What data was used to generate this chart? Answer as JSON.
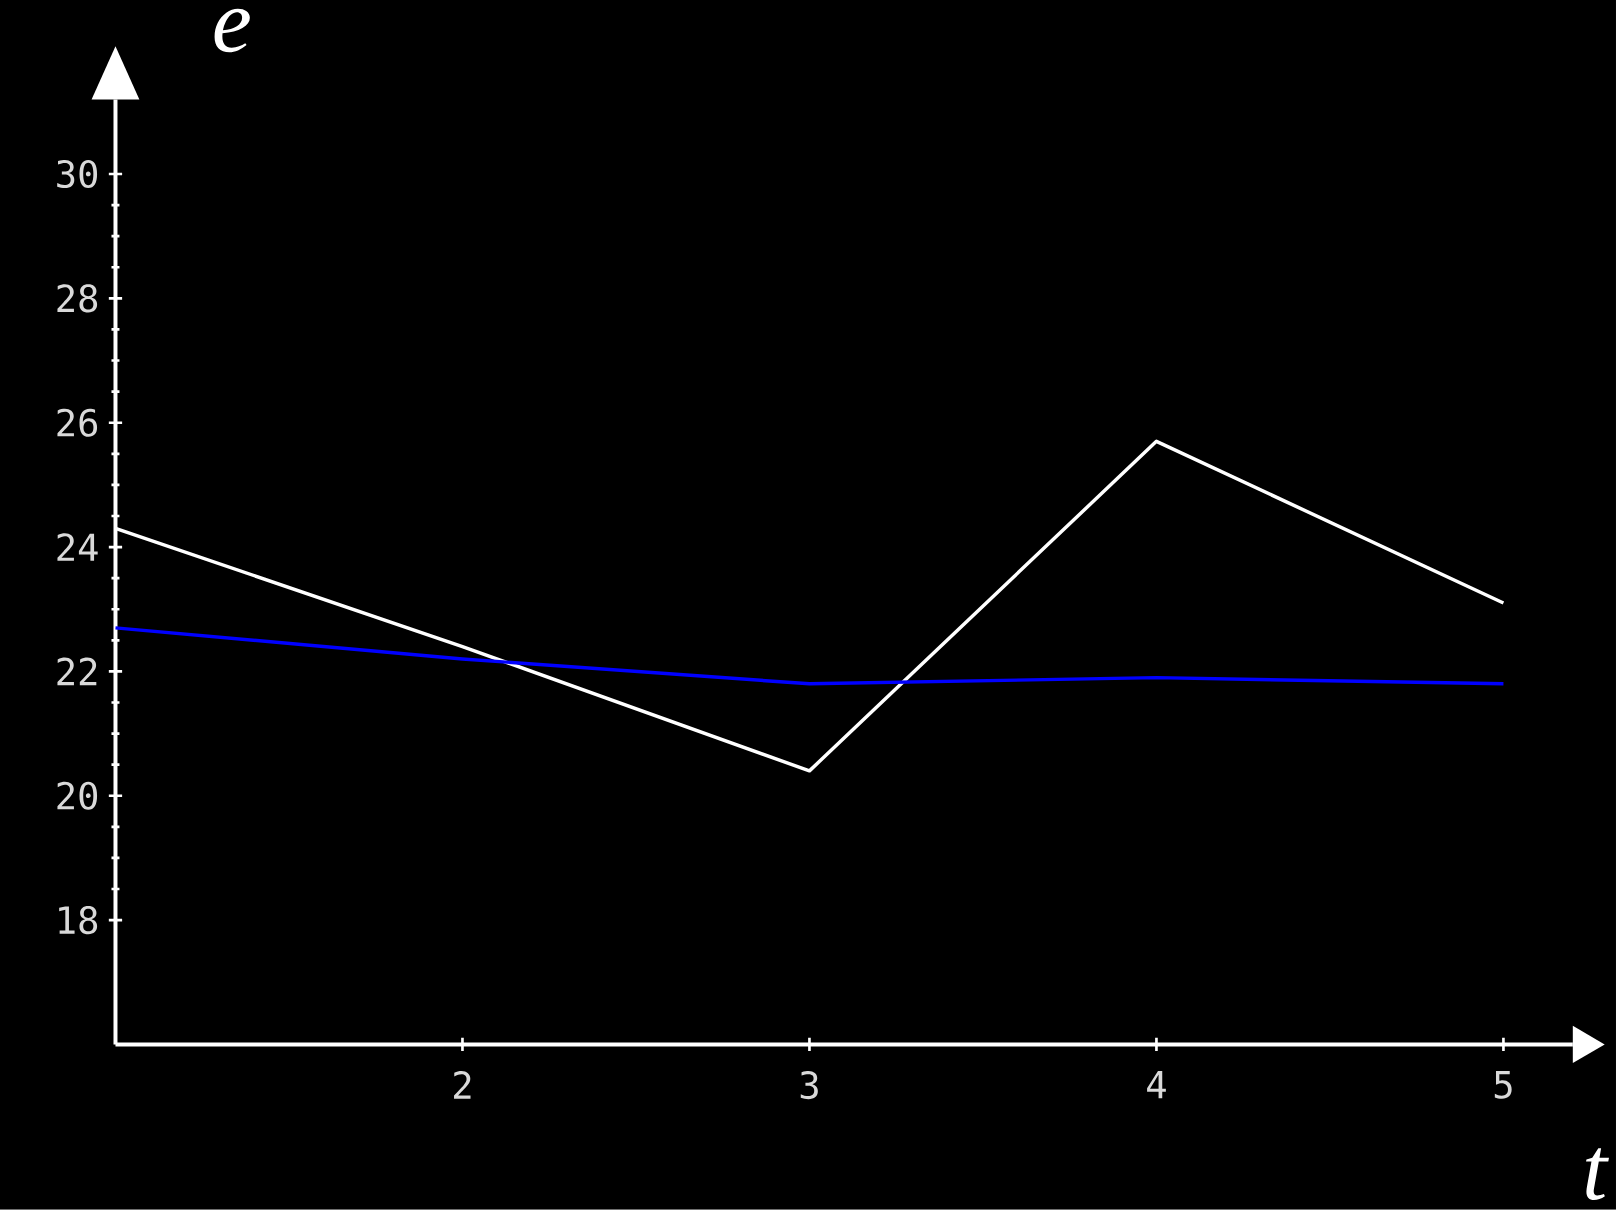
{
  "chart_data": {
    "type": "line",
    "xlabel": "t",
    "ylabel": "e",
    "x": [
      1,
      2,
      3,
      4,
      5
    ],
    "series": [
      {
        "color": "#ffffff",
        "values": [
          24.3,
          22.4,
          20.4,
          25.7,
          23.1
        ]
      },
      {
        "color": "#0000ff",
        "values": [
          22.7,
          22.2,
          21.8,
          21.9,
          21.8
        ]
      }
    ],
    "xlim": [
      1,
      5.2
    ],
    "ylim": [
      16,
      31.2
    ],
    "xticks": [
      2,
      3,
      4,
      5
    ],
    "yticks": [
      18,
      20,
      22,
      24,
      26,
      28,
      30
    ],
    "grid": false,
    "marker": "none",
    "line_style": "solid"
  }
}
